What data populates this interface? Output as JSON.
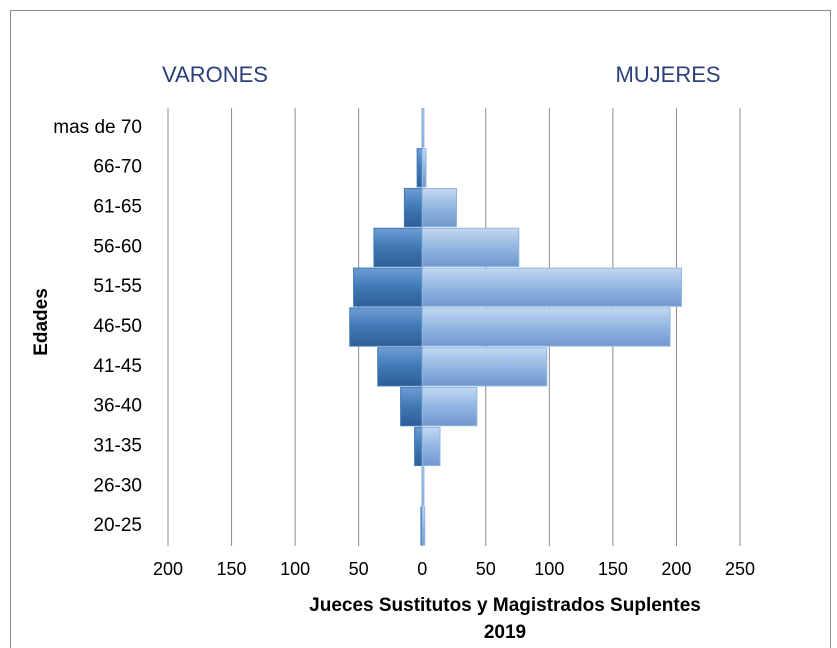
{
  "chart_data": {
    "type": "pyramid",
    "xlabel": [
      "Jueces Sustitutos y Magistrados  Suplentes",
      "2019"
    ],
    "ylabel": "Edades",
    "categories": [
      "20-25",
      "26-30",
      "31-35",
      "36-40",
      "41-45",
      "46-50",
      "51-55",
      "56-60",
      "61-65",
      "66-70",
      "mas de 70"
    ],
    "series": [
      {
        "name": "VARONES",
        "color": "#3f78b4",
        "values": [
          -1,
          0,
          -6,
          -17,
          -35,
          -57,
          -54,
          -38,
          -14,
          -4,
          0
        ]
      },
      {
        "name": "MUJERES",
        "color": "#92b6e2",
        "values": [
          2,
          1,
          14,
          43,
          98,
          195,
          204,
          76,
          27,
          3,
          0
        ]
      }
    ],
    "xlim": [
      -200,
      250
    ],
    "xticks": [
      {
        "value": -200,
        "label": "200"
      },
      {
        "value": -150,
        "label": "150"
      },
      {
        "value": -100,
        "label": "100"
      },
      {
        "value": -50,
        "label": "50"
      },
      0,
      50,
      100,
      150,
      200,
      250
    ],
    "grid": true,
    "header_color": "#2b3f7a"
  }
}
